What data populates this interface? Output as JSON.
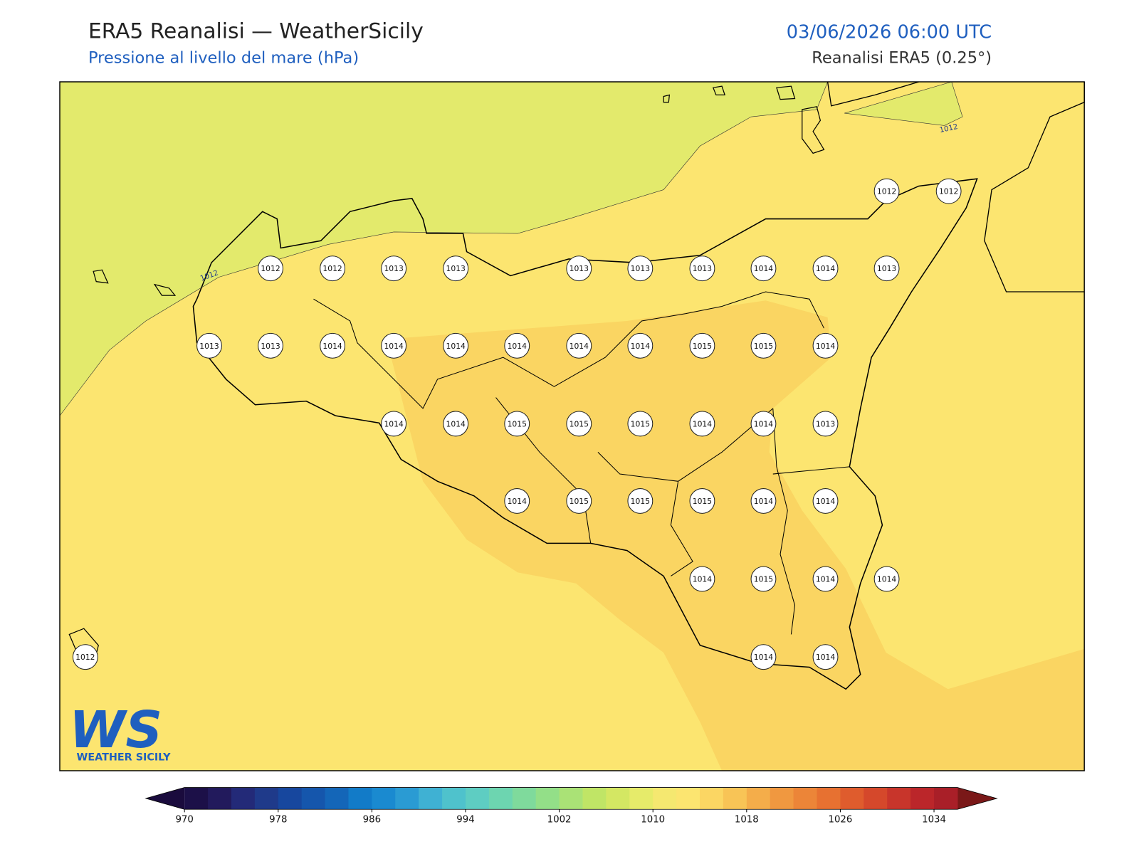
{
  "header": {
    "title": "ERA5 Reanalisi — WeatherSicily",
    "subtitle": "Pressione al livello del mare (hPa)",
    "datetime": "03/06/2026 06:00 UTC",
    "source": "Reanalisi ERA5 (0.25°)"
  },
  "map": {
    "contour_labels": [
      1012,
      1012
    ],
    "station_rows": [
      [
        1012,
        1012
      ],
      [
        1012,
        1012,
        1013,
        1013,
        1013,
        1013,
        1013,
        1014,
        1014,
        1013
      ],
      [
        1013,
        1013,
        1014,
        1014,
        1014,
        1014,
        1014,
        1014,
        1015,
        1015,
        1014
      ],
      [
        1014,
        1014,
        1015,
        1015,
        1015,
        1014,
        1014,
        1013
      ],
      [
        1014,
        1015,
        1015,
        1015,
        1014,
        1014
      ],
      [
        1014,
        1015,
        1014,
        1014
      ],
      [
        1012,
        1014,
        1014
      ]
    ]
  },
  "colorbar": {
    "lim": [
      970,
      1036
    ],
    "ticks": [
      970,
      978,
      986,
      994,
      1002,
      1010,
      1018,
      1026,
      1034
    ]
  },
  "logo": {
    "mark": "WS",
    "text": "WEATHER SICILY"
  }
}
